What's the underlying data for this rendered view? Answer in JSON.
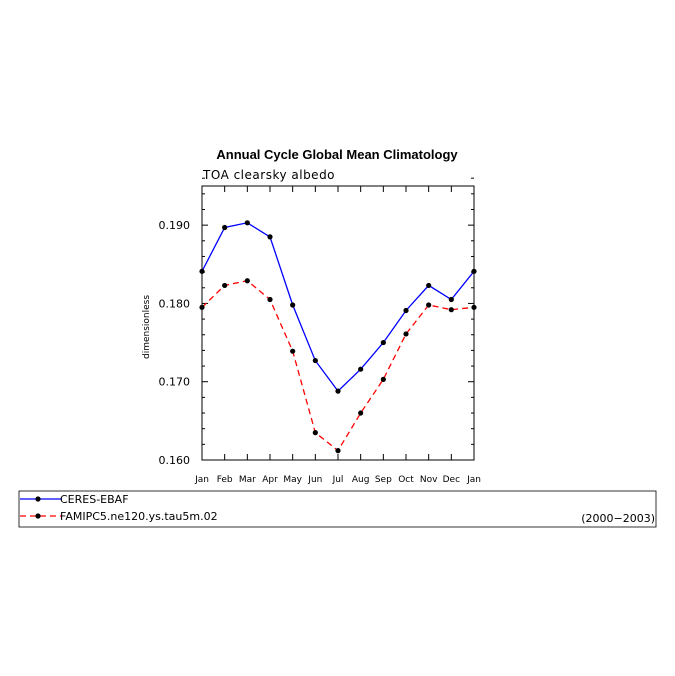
{
  "chart_data": {
    "type": "line",
    "title": "Annual Cycle Global Mean Climatology",
    "subtitle": "TOA clearsky albedo",
    "ylabel": "dimensionless",
    "xlabel": "",
    "categories": [
      "Jan",
      "Feb",
      "Mar",
      "Apr",
      "May",
      "Jun",
      "Jul",
      "Aug",
      "Sep",
      "Oct",
      "Nov",
      "Dec",
      "Jan"
    ],
    "ylim": [
      0.16,
      0.195
    ],
    "yticks": [
      "0.160",
      "0.170",
      "0.180",
      "0.190"
    ],
    "series": [
      {
        "name": "CERES-EBAF",
        "color": "#0000ff",
        "dashed": false,
        "values": [
          0.1841,
          0.1897,
          0.1903,
          0.1885,
          0.1798,
          0.1727,
          0.1688,
          0.1716,
          0.175,
          0.1791,
          0.1823,
          0.1805,
          0.1841
        ]
      },
      {
        "name": "FAMIPC5.ne120.ys.tau5m.02",
        "color": "#ff0000",
        "dashed": true,
        "values": [
          0.1795,
          0.1823,
          0.1829,
          0.1805,
          0.1739,
          0.1635,
          0.1612,
          0.166,
          0.1703,
          0.1761,
          0.1798,
          0.1792,
          0.1795
        ]
      }
    ],
    "legend": {
      "placement": "bottom",
      "period": "(2000−2003)"
    }
  }
}
